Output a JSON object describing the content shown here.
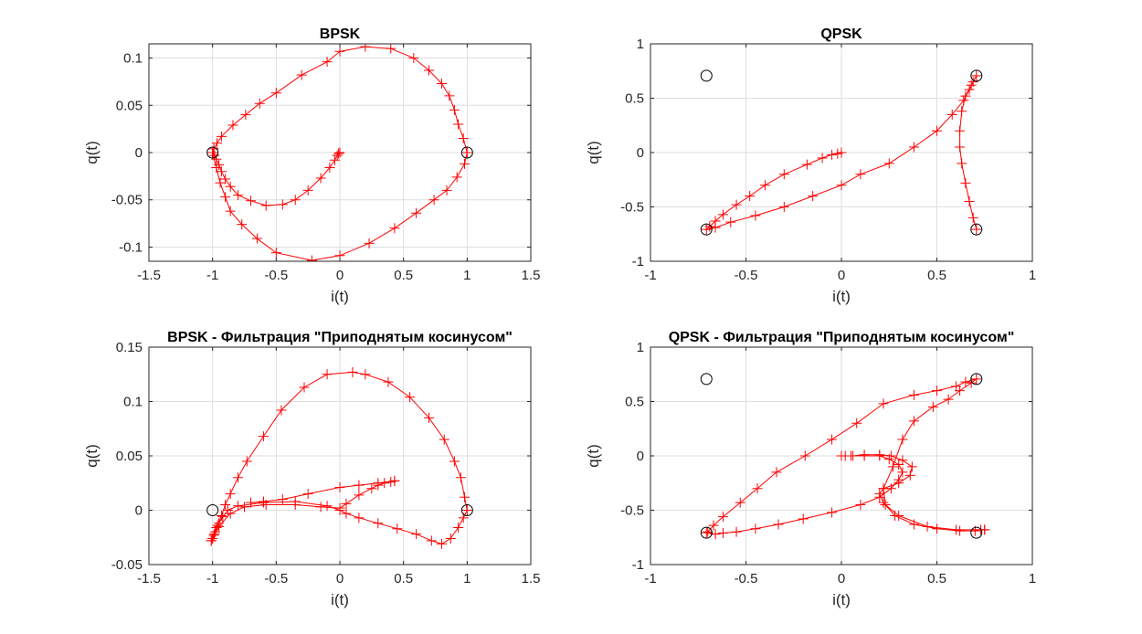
{
  "colors": {
    "trajectory": "#ff0000",
    "constellation": "#000000",
    "grid": "#dedede",
    "axes": "#262626"
  },
  "chart_data": [
    {
      "type": "line",
      "title": "BPSK",
      "xlabel": "i(t)",
      "ylabel": "q(t)",
      "xlim": [
        -1.5,
        1.5
      ],
      "ylim": [
        -0.115,
        0.115
      ],
      "xticks": [
        "-1.5",
        "-1",
        "-0.5",
        "0",
        "0.5",
        "1",
        "1.5"
      ],
      "xtick_values": [
        -1.5,
        -1,
        -0.5,
        0,
        0.5,
        1,
        1.5
      ],
      "yticks": [
        "0.1",
        "0.05",
        "0",
        "-0.05",
        "-0.1"
      ],
      "ytick_values": [
        0.1,
        0.05,
        0,
        -0.05,
        -0.1
      ],
      "grid": true,
      "constellation": [
        [
          -1,
          0
        ],
        [
          1,
          0
        ]
      ],
      "series": [
        {
          "marker": "+",
          "points": [
            [
              0,
              0
            ],
            [
              -0.01,
              -0.001
            ],
            [
              -0.02,
              -0.003
            ],
            [
              -0.04,
              -0.008
            ],
            [
              -0.08,
              -0.016
            ],
            [
              -0.15,
              -0.027
            ],
            [
              -0.25,
              -0.04
            ],
            [
              -0.35,
              -0.05
            ],
            [
              -0.45,
              -0.055
            ],
            [
              -0.58,
              -0.056
            ],
            [
              -0.7,
              -0.051
            ],
            [
              -0.8,
              -0.045
            ],
            [
              -0.86,
              -0.036
            ],
            [
              -0.9,
              -0.028
            ],
            [
              -0.93,
              -0.02
            ],
            [
              -0.95,
              -0.013
            ],
            [
              -0.97,
              -0.007
            ],
            [
              -0.985,
              -0.003
            ],
            [
              -1.0,
              0
            ],
            [
              -0.99,
              0.004
            ],
            [
              -0.965,
              0.01
            ],
            [
              -0.93,
              0.017
            ],
            [
              -0.84,
              0.029
            ],
            [
              -0.74,
              0.04
            ],
            [
              -0.63,
              0.052
            ],
            [
              -0.5,
              0.063
            ],
            [
              -0.3,
              0.082
            ],
            [
              -0.1,
              0.096
            ],
            [
              0,
              0.107
            ],
            [
              0.2,
              0.112
            ],
            [
              0.4,
              0.11
            ],
            [
              0.58,
              0.1
            ],
            [
              0.7,
              0.087
            ],
            [
              0.8,
              0.073
            ],
            [
              0.86,
              0.06
            ],
            [
              0.9,
              0.045
            ],
            [
              0.93,
              0.03
            ],
            [
              0.97,
              0.015
            ],
            [
              1.0,
              0
            ],
            [
              0.98,
              -0.012
            ],
            [
              0.92,
              -0.026
            ],
            [
              0.84,
              -0.04
            ],
            [
              0.74,
              -0.05
            ],
            [
              0.6,
              -0.064
            ],
            [
              0.43,
              -0.08
            ],
            [
              0.23,
              -0.096
            ],
            [
              0,
              -0.109
            ],
            [
              -0.22,
              -0.114
            ],
            [
              -0.5,
              -0.106
            ],
            [
              -0.65,
              -0.091
            ],
            [
              -0.77,
              -0.076
            ],
            [
              -0.86,
              -0.062
            ],
            [
              -0.9,
              -0.047
            ],
            [
              -0.94,
              -0.032
            ],
            [
              -0.97,
              -0.016
            ],
            [
              -1.0,
              0
            ]
          ]
        }
      ]
    },
    {
      "type": "line",
      "title": "QPSK",
      "xlabel": "i(t)",
      "ylabel": "q(t)",
      "xlim": [
        -1,
        1
      ],
      "ylim": [
        -1,
        1
      ],
      "xticks": [
        "-1",
        "-0.5",
        "0",
        "0.5",
        "1"
      ],
      "xtick_values": [
        -1,
        -0.5,
        0,
        0.5,
        1
      ],
      "yticks": [
        "1",
        "0.5",
        "0",
        "-0.5",
        "-1"
      ],
      "ytick_values": [
        1,
        0.5,
        0,
        -0.5,
        -1
      ],
      "grid": true,
      "constellation": [
        [
          -0.707,
          0.707
        ],
        [
          0.707,
          0.707
        ],
        [
          -0.707,
          -0.707
        ],
        [
          0.707,
          -0.707
        ]
      ],
      "series": [
        {
          "marker": "+",
          "points": [
            [
              0,
              0
            ],
            [
              -0.02,
              -0.01
            ],
            [
              -0.05,
              -0.02
            ],
            [
              -0.1,
              -0.05
            ],
            [
              -0.18,
              -0.11
            ],
            [
              -0.3,
              -0.2
            ],
            [
              -0.4,
              -0.3
            ],
            [
              -0.48,
              -0.4
            ],
            [
              -0.55,
              -0.48
            ],
            [
              -0.62,
              -0.57
            ],
            [
              -0.66,
              -0.63
            ],
            [
              -0.69,
              -0.68
            ],
            [
              -0.707,
              -0.707
            ],
            [
              -0.66,
              -0.69
            ],
            [
              -0.58,
              -0.64
            ],
            [
              -0.45,
              -0.58
            ],
            [
              -0.3,
              -0.5
            ],
            [
              -0.15,
              -0.4
            ],
            [
              0,
              -0.3
            ],
            [
              0.1,
              -0.2
            ],
            [
              0.25,
              -0.1
            ],
            [
              0.38,
              0.05
            ],
            [
              0.5,
              0.2
            ],
            [
              0.58,
              0.35
            ],
            [
              0.64,
              0.48
            ],
            [
              0.67,
              0.58
            ],
            [
              0.69,
              0.65
            ],
            [
              0.707,
              0.707
            ],
            [
              0.68,
              0.62
            ],
            [
              0.65,
              0.52
            ],
            [
              0.63,
              0.38
            ],
            [
              0.62,
              0.2
            ],
            [
              0.62,
              0.05
            ],
            [
              0.63,
              -0.1
            ],
            [
              0.65,
              -0.28
            ],
            [
              0.67,
              -0.45
            ],
            [
              0.69,
              -0.6
            ],
            [
              0.707,
              -0.707
            ]
          ]
        }
      ]
    },
    {
      "type": "line",
      "title": "BPSK - Фильтрация \"Приподнятым косинусом\"",
      "xlabel": "i(t)",
      "ylabel": "q(t)",
      "xlim": [
        -1.5,
        1.5
      ],
      "ylim": [
        -0.05,
        0.15
      ],
      "xticks": [
        "-1.5",
        "-1",
        "-0.5",
        "0",
        "0.5",
        "1",
        "1.5"
      ],
      "xtick_values": [
        -1.5,
        -1,
        -0.5,
        0,
        0.5,
        1,
        1.5
      ],
      "yticks": [
        "0.15",
        "0.1",
        "0.05",
        "0",
        "-0.05"
      ],
      "ytick_values": [
        0.15,
        0.1,
        0.05,
        0,
        -0.05
      ],
      "grid": true,
      "constellation": [
        [
          -1,
          0
        ],
        [
          1,
          0
        ]
      ],
      "series": [
        {
          "marker": "+",
          "points": [
            [
              -1.01,
              -0.028
            ],
            [
              -1.0,
              -0.026
            ],
            [
              -0.99,
              -0.023
            ],
            [
              -0.98,
              -0.02
            ],
            [
              -0.97,
              -0.016
            ],
            [
              -0.95,
              -0.012
            ],
            [
              -0.92,
              -0.006
            ],
            [
              -0.88,
              0
            ],
            [
              -0.8,
              0.004
            ],
            [
              -0.6,
              0.007
            ],
            [
              -0.35,
              0.008
            ],
            [
              -0.1,
              0.004
            ],
            [
              0,
              0
            ],
            [
              0.05,
              -0.003
            ],
            [
              0.15,
              -0.007
            ],
            [
              0.3,
              -0.012
            ],
            [
              0.45,
              -0.017
            ],
            [
              0.6,
              -0.022
            ],
            [
              0.72,
              -0.028
            ],
            [
              0.8,
              -0.031
            ],
            [
              0.87,
              -0.026
            ],
            [
              0.93,
              -0.016
            ],
            [
              0.97,
              -0.007
            ],
            [
              1.0,
              0
            ],
            [
              0.98,
              0.012
            ],
            [
              0.95,
              0.03
            ],
            [
              0.9,
              0.045
            ],
            [
              0.82,
              0.065
            ],
            [
              0.7,
              0.085
            ],
            [
              0.55,
              0.104
            ],
            [
              0.38,
              0.118
            ],
            [
              0.2,
              0.125
            ],
            [
              0.1,
              0.127
            ],
            [
              -0.1,
              0.125
            ],
            [
              -0.28,
              0.113
            ],
            [
              -0.46,
              0.092
            ],
            [
              -0.6,
              0.068
            ],
            [
              -0.73,
              0.045
            ],
            [
              -0.8,
              0.03
            ],
            [
              -0.86,
              0.015
            ],
            [
              -0.9,
              0.005
            ],
            [
              -0.93,
              -0.005
            ],
            [
              -0.96,
              -0.014
            ],
            [
              -0.985,
              -0.022
            ],
            [
              -1.0,
              -0.026
            ]
          ]
        },
        {
          "marker": "+",
          "points": [
            [
              -1.01,
              -0.028
            ],
            [
              -0.95,
              -0.015
            ],
            [
              -0.86,
              -0.003
            ],
            [
              -0.75,
              0.003
            ],
            [
              -0.58,
              0.005
            ],
            [
              -0.35,
              0.005
            ],
            [
              -0.15,
              0.003
            ],
            [
              0,
              0.002
            ],
            [
              0.05,
              0.006
            ],
            [
              0.15,
              0.014
            ],
            [
              0.25,
              0.02
            ],
            [
              0.3,
              0.023
            ],
            [
              0.35,
              0.025
            ],
            [
              0.4,
              0.026
            ],
            [
              0.43,
              0.027
            ]
          ]
        },
        {
          "marker": "+",
          "points": [
            [
              0.43,
              0.027
            ],
            [
              0.3,
              0.025
            ],
            [
              0.15,
              0.023
            ],
            [
              0,
              0.021
            ],
            [
              -0.25,
              0.015
            ],
            [
              -0.45,
              0.01
            ],
            [
              -0.6,
              0.008
            ],
            [
              -0.7,
              0.007
            ]
          ]
        }
      ]
    },
    {
      "type": "line",
      "title": "QPSK - Фильтрация \"Приподнятым косинусом\"",
      "xlabel": "i(t)",
      "ylabel": "q(t)",
      "xlim": [
        -1,
        1
      ],
      "ylim": [
        -1,
        1
      ],
      "xticks": [
        "-1",
        "-0.5",
        "0",
        "0.5",
        "1"
      ],
      "xtick_values": [
        -1,
        -0.5,
        0,
        0.5,
        1
      ],
      "yticks": [
        "1",
        "0.5",
        "0",
        "-0.5",
        "-1"
      ],
      "ytick_values": [
        1,
        0.5,
        0,
        -0.5,
        -1
      ],
      "grid": true,
      "constellation": [
        [
          -0.707,
          0.707
        ],
        [
          0.707,
          0.707
        ],
        [
          -0.707,
          -0.707
        ],
        [
          0.707,
          -0.707
        ]
      ],
      "series": [
        {
          "marker": "+",
          "points": [
            [
              0,
              0
            ],
            [
              0.02,
              0
            ],
            [
              0.06,
              0
            ],
            [
              0.12,
              0.01
            ],
            [
              0.2,
              0.01
            ],
            [
              0.26,
              0
            ],
            [
              0.32,
              -0.04
            ],
            [
              0.37,
              -0.1
            ],
            [
              0.36,
              -0.18
            ],
            [
              0.3,
              -0.25
            ],
            [
              0.22,
              -0.3
            ],
            [
              0.2,
              -0.35
            ],
            [
              0.22,
              -0.43
            ],
            [
              0.28,
              -0.55
            ],
            [
              0.38,
              -0.63
            ],
            [
              0.5,
              -0.67
            ],
            [
              0.62,
              -0.69
            ],
            [
              0.7,
              -0.69
            ],
            [
              0.73,
              -0.68
            ],
            [
              0.75,
              -0.68
            ]
          ]
        },
        {
          "marker": "+",
          "points": [
            [
              0.75,
              -0.68
            ],
            [
              0.6,
              -0.68
            ],
            [
              0.45,
              -0.65
            ],
            [
              0.3,
              -0.55
            ],
            [
              0.23,
              -0.45
            ],
            [
              0.22,
              -0.3
            ],
            [
              0.27,
              -0.1
            ],
            [
              0.32,
              0.15
            ],
            [
              0.38,
              0.32
            ],
            [
              0.48,
              0.45
            ],
            [
              0.56,
              0.52
            ],
            [
              0.62,
              0.6
            ],
            [
              0.68,
              0.67
            ],
            [
              0.707,
              0.707
            ],
            [
              0.65,
              0.68
            ],
            [
              0.6,
              0.64
            ],
            [
              0.5,
              0.6
            ],
            [
              0.38,
              0.56
            ],
            [
              0.22,
              0.48
            ],
            [
              0.08,
              0.3
            ],
            [
              -0.05,
              0.15
            ],
            [
              -0.19,
              0
            ],
            [
              -0.34,
              -0.15
            ],
            [
              -0.44,
              -0.3
            ],
            [
              -0.53,
              -0.43
            ],
            [
              -0.62,
              -0.56
            ],
            [
              -0.67,
              -0.64
            ],
            [
              -0.7,
              -0.7
            ],
            [
              -0.707,
              -0.707
            ],
            [
              -0.66,
              -0.72
            ],
            [
              -0.62,
              -0.71
            ],
            [
              -0.55,
              -0.7
            ],
            [
              -0.45,
              -0.67
            ],
            [
              -0.33,
              -0.63
            ],
            [
              -0.2,
              -0.58
            ],
            [
              -0.05,
              -0.52
            ],
            [
              0.1,
              -0.45
            ],
            [
              0.2,
              -0.38
            ],
            [
              0.26,
              -0.3
            ],
            [
              0.3,
              -0.22
            ],
            [
              0.32,
              -0.15
            ],
            [
              0.3,
              -0.08
            ],
            [
              0.25,
              -0.03
            ],
            [
              0.2,
              0
            ],
            [
              0.12,
              0
            ],
            [
              0.05,
              0
            ],
            [
              0,
              0
            ]
          ]
        }
      ]
    }
  ]
}
